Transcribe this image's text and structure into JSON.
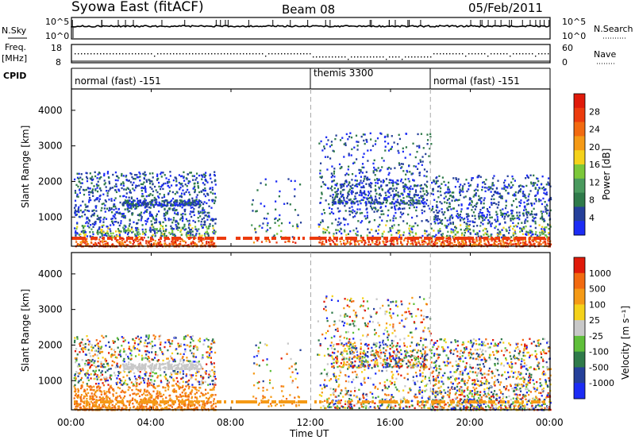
{
  "header": {
    "station": "Syowa East (fitACF)",
    "beam": "Beam 08",
    "date": "05/Feb/2011"
  },
  "nsky_panel": {
    "left_label": "N.Sky",
    "left_ticks": [
      "10^5",
      "10^0"
    ],
    "right_label": "N.Search",
    "right_ticks": [
      "10^5",
      "10^0"
    ]
  },
  "freq_panel": {
    "left_label": "Freq.",
    "left_unit": "[MHz]",
    "left_ticks": [
      "18",
      "8"
    ],
    "right_label": "Nave",
    "right_ticks": [
      "60",
      "0"
    ]
  },
  "cpid_panel": {
    "label": "CPID",
    "segments": [
      {
        "label": "normal (fast) -151",
        "start_hour": 0,
        "end_hour": 12
      },
      {
        "label": "themis 3300",
        "start_hour": 12,
        "end_hour": 18
      },
      {
        "label": "normal (fast) -151",
        "start_hour": 18,
        "end_hour": 24
      }
    ]
  },
  "chart_data": [
    {
      "type": "heatmap",
      "title": "",
      "xlabel": "Time UT",
      "ylabel": "Slant Range [km]",
      "xlim": [
        "00:00",
        "24:00"
      ],
      "ylim": [
        180,
        4600
      ],
      "yticks": [
        "1000",
        "2000",
        "3000",
        "4000"
      ],
      "colorbar": {
        "label": "Power [dB]",
        "ticks": [
          "4",
          "8",
          "12",
          "16",
          "20",
          "24",
          "28"
        ],
        "colors": [
          "#1c2cf5",
          "#25409a",
          "#2f7a4a",
          "#4a9a5e",
          "#7cc83a",
          "#f5d21a",
          "#f59a16",
          "#f26a10",
          "#ec3b0d",
          "#e01a0a"
        ]
      },
      "series": [
        {
          "time_h": [
            0.2,
            7.2
          ],
          "range_km": [
            200,
            2300
          ],
          "level": "mixed"
        },
        {
          "time_h": [
            12.3,
            18.0
          ],
          "range_km": [
            250,
            3400
          ],
          "level": "mixed"
        },
        {
          "time_h": [
            18.0,
            24.0
          ],
          "range_km": [
            200,
            2200
          ],
          "level": "mixed"
        }
      ]
    },
    {
      "type": "heatmap",
      "title": "",
      "xlabel": "Time UT",
      "ylabel": "Slant Range [km]",
      "xlim": [
        "00:00",
        "24:00"
      ],
      "ylim": [
        180,
        4600
      ],
      "yticks": [
        "1000",
        "2000",
        "3000",
        "4000"
      ],
      "colorbar": {
        "label": "Velocity [m s⁻¹]",
        "ticks": [
          "1000",
          "500",
          "100",
          "25",
          "-25",
          "-100",
          "-500",
          "-1000"
        ],
        "colors": [
          "#1c2cf5",
          "#25409a",
          "#2f7a4a",
          "#5fbf3a",
          "#c8c8c8",
          "#f5d21a",
          "#f59a16",
          "#f26a10",
          "#e01a0a"
        ]
      }
    }
  ],
  "x_ticks": [
    "00:00",
    "04:00",
    "08:00",
    "12:00",
    "16:00",
    "20:00",
    "00:00"
  ]
}
